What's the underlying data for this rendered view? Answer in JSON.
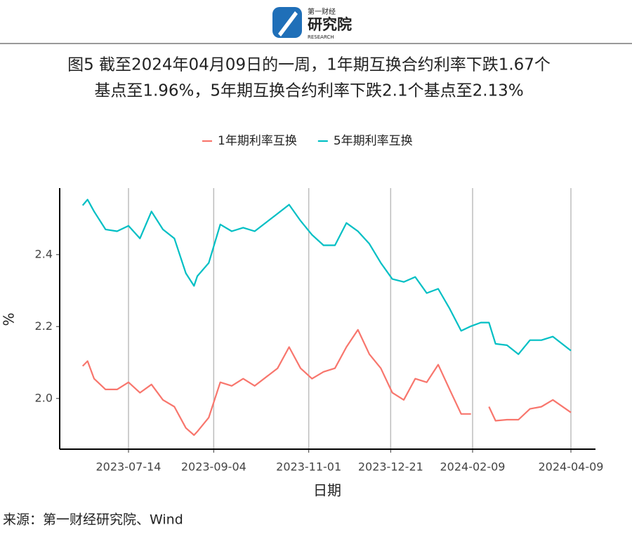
{
  "header": {
    "logo_top": "第一财经",
    "logo_main": "研究院",
    "logo_sub": "RESEARCH"
  },
  "chart_data": {
    "type": "line",
    "title": [
      "图5  截至2024年04月09日的一周，1年期互换合约利率下跌1.67个",
      "基点至1.96%，5年期互换合约利率下跌2.1个基点至2.13%"
    ],
    "x_label": "日期",
    "y_label": "%",
    "x": [
      "2023-06-16",
      "2023-06-19",
      "2023-06-23",
      "2023-06-30",
      "2023-07-07",
      "2023-07-14",
      "2023-07-21",
      "2023-07-28",
      "2023-08-04",
      "2023-08-11",
      "2023-08-18",
      "2023-08-23",
      "2023-08-25",
      "2023-09-01",
      "2023-09-08",
      "2023-09-15",
      "2023-09-22",
      "2023-09-29",
      "2023-10-13",
      "2023-10-20",
      "2023-10-27",
      "2023-11-03",
      "2023-11-10",
      "2023-11-17",
      "2023-11-24",
      "2023-12-01",
      "2023-12-08",
      "2023-12-15",
      "2023-12-22",
      "2023-12-29",
      "2024-01-05",
      "2024-01-12",
      "2024-01-19",
      "2024-01-26",
      "2024-02-02",
      "2024-02-08",
      "2024-02-14",
      "2024-02-19",
      "2024-02-23",
      "2024-03-01",
      "2024-03-08",
      "2024-03-15",
      "2024-03-22",
      "2024-03-29",
      "2024-04-09"
    ],
    "series": [
      {
        "name": "1年期利率互换",
        "color": "#F8766D",
        "values": [
          2.09,
          2.104,
          2.055,
          2.025,
          2.025,
          2.045,
          2.016,
          2.039,
          1.996,
          1.977,
          1.918,
          1.898,
          1.908,
          1.947,
          2.045,
          2.035,
          2.055,
          2.035,
          2.084,
          2.143,
          2.084,
          2.055,
          2.074,
          2.084,
          2.143,
          2.191,
          2.123,
          2.084,
          2.016,
          1.996,
          2.055,
          2.045,
          2.094,
          2.025,
          1.957,
          1.957,
          null,
          1.977,
          1.938,
          1.941,
          1.941,
          1.971,
          1.977,
          1.996,
          1.961
        ]
      },
      {
        "name": "5年期利率互换",
        "color": "#00BFC4",
        "values": [
          2.537,
          2.553,
          2.52,
          2.47,
          2.465,
          2.48,
          2.445,
          2.52,
          2.47,
          2.445,
          2.348,
          2.313,
          2.34,
          2.377,
          2.484,
          2.465,
          2.475,
          2.465,
          2.514,
          2.539,
          2.494,
          2.455,
          2.426,
          2.426,
          2.488,
          2.465,
          2.43,
          2.377,
          2.332,
          2.324,
          2.338,
          2.293,
          2.305,
          2.25,
          2.188,
          2.201,
          2.211,
          2.211,
          2.152,
          2.148,
          2.123,
          2.162,
          2.162,
          2.172,
          2.133
        ]
      }
    ],
    "xlim": [
      "2023-06-02",
      "2024-04-24"
    ],
    "xticks": [
      "2023-07-14",
      "2023-09-04",
      "2023-11-01",
      "2023-12-21",
      "2024-02-09",
      "2024-04-09"
    ],
    "ylim": [
      1.859,
      2.585
    ],
    "yticks": [
      {
        "value": 2,
        "label": "2.0"
      },
      2.2,
      2.4
    ],
    "grid": "x",
    "legend": "top"
  },
  "source": "来源：第一财经研究院、Wind"
}
